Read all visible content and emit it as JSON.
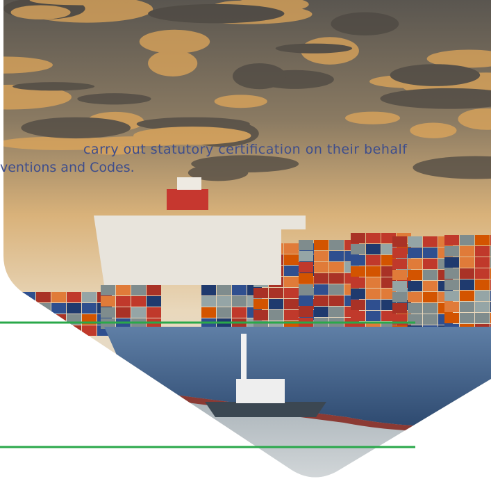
{
  "text": {
    "line1": "carry out statutory certification on their behalf",
    "line2": "ventions and Codes."
  }
}
